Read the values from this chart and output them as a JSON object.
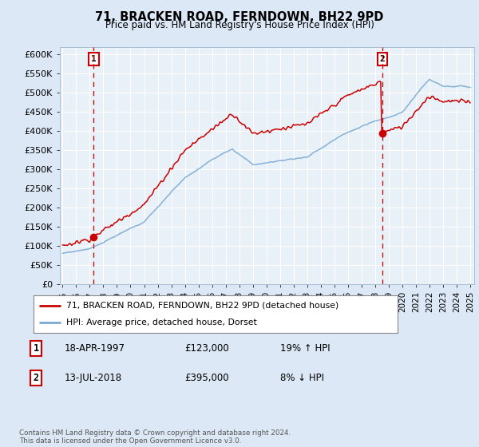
{
  "title": "71, BRACKEN ROAD, FERNDOWN, BH22 9PD",
  "subtitle": "Price paid vs. HM Land Registry's House Price Index (HPI)",
  "legend_line1": "71, BRACKEN ROAD, FERNDOWN, BH22 9PD (detached house)",
  "legend_line2": "HPI: Average price, detached house, Dorset",
  "sale1_label": "1",
  "sale1_date": "18-APR-1997",
  "sale1_price": "£123,000",
  "sale1_hpi": "19% ↑ HPI",
  "sale1_year": 1997.29,
  "sale1_value": 123000,
  "sale2_label": "2",
  "sale2_date": "13-JUL-2018",
  "sale2_price": "£395,000",
  "sale2_hpi": "8% ↓ HPI",
  "sale2_year": 2018.54,
  "sale2_value": 395000,
  "hpi_color": "#7aaad4",
  "price_color": "#cc0000",
  "bg_color": "#dce8f5",
  "plot_bg": "#e8f0f8",
  "grid_color": "#ffffff",
  "ylim": [
    0,
    620000
  ],
  "xlim_start": 1994.8,
  "xlim_end": 2025.3,
  "footnote": "Contains HM Land Registry data © Crown copyright and database right 2024.\nThis data is licensed under the Open Government Licence v3.0.",
  "yticks": [
    0,
    50000,
    100000,
    150000,
    200000,
    250000,
    300000,
    350000,
    400000,
    450000,
    500000,
    550000,
    600000
  ],
  "ytick_labels": [
    "£0",
    "£50K",
    "£100K",
    "£150K",
    "£200K",
    "£250K",
    "£300K",
    "£350K",
    "£400K",
    "£450K",
    "£500K",
    "£550K",
    "£600K"
  ],
  "xticks": [
    1995,
    1996,
    1997,
    1998,
    1999,
    2000,
    2001,
    2002,
    2003,
    2004,
    2005,
    2006,
    2007,
    2008,
    2009,
    2010,
    2011,
    2012,
    2013,
    2014,
    2015,
    2016,
    2017,
    2018,
    2019,
    2020,
    2021,
    2022,
    2023,
    2024,
    2025
  ]
}
